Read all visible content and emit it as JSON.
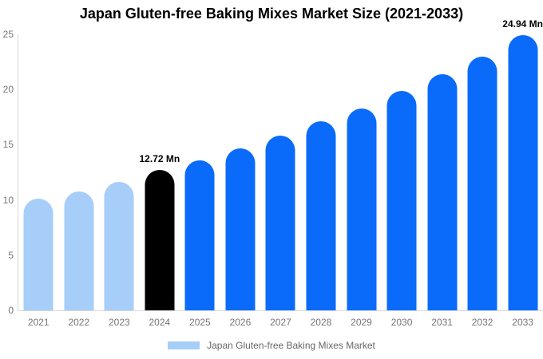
{
  "chart_data": {
    "type": "bar",
    "title": "Japan Gluten-free Baking Mixes Market Size (2021-2033)",
    "categories": [
      "2021",
      "2022",
      "2023",
      "2024",
      "2025",
      "2026",
      "2027",
      "2028",
      "2029",
      "2030",
      "2031",
      "2032",
      "2033"
    ],
    "values": [
      10.1,
      10.8,
      11.6,
      12.72,
      13.6,
      14.7,
      15.8,
      17.1,
      18.3,
      19.9,
      21.4,
      23.0,
      24.94
    ],
    "bar_colors": [
      "#a6cef8",
      "#a6cef8",
      "#a6cef8",
      "#000000",
      "#0a6bfa",
      "#0a6bfa",
      "#0a6bfa",
      "#0a6bfa",
      "#0a6bfa",
      "#0a6bfa",
      "#0a6bfa",
      "#0a6bfa",
      "#0a6bfa"
    ],
    "annotations": [
      {
        "category": "2024",
        "text": "12.72 Mn"
      },
      {
        "category": "2033",
        "text": "24.94 Mn"
      }
    ],
    "xlabel": "",
    "ylabel": "",
    "yticks": [
      0,
      5,
      10,
      15,
      20,
      25
    ],
    "ylim": [
      0,
      25
    ],
    "grid": false,
    "legend_position": "bottom"
  },
  "legend": {
    "label": "Japan Gluten-free Baking Mixes Market",
    "swatch_color": "#a6cef8"
  },
  "colors": {
    "background": "#ffffff",
    "axis_line": "#d9d9d9",
    "tick_text": "#757575",
    "legend_text": "#666666",
    "annotation_text": "#000000",
    "bar_light_blue": "#a6cef8",
    "bar_black": "#000000",
    "bar_blue": "#0a6bfa"
  }
}
